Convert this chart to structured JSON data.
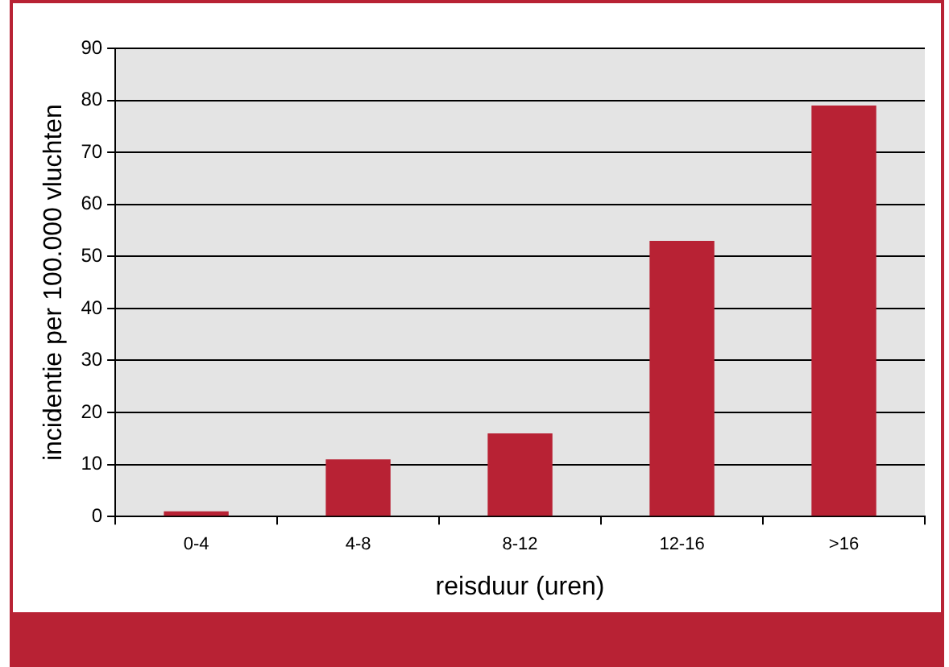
{
  "chart_data": {
    "type": "bar",
    "xlabel": "reisduur (uren)",
    "ylabel": "incidentie per 100.000 vluchten",
    "categories": [
      "0-4",
      "4-8",
      "8-12",
      "12-16",
      ">16"
    ],
    "values": [
      1,
      11,
      16,
      53,
      79
    ],
    "color": "#b82234",
    "ylim": [
      0,
      90
    ],
    "yticks": [
      0,
      10,
      20,
      30,
      40,
      50,
      60,
      70,
      80,
      90
    ],
    "grid": "y"
  }
}
